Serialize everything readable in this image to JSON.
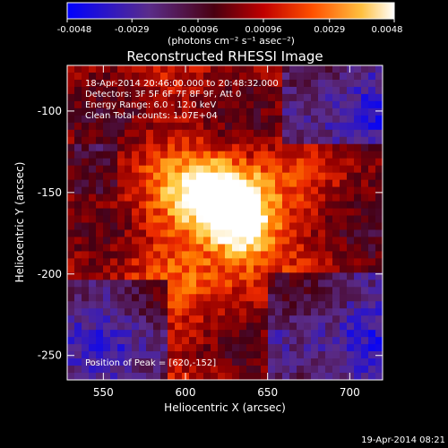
{
  "colorbar": {
    "ticks": [
      "-0.0048",
      "-0.0029",
      "-0.00096",
      "0.00096",
      "0.0029",
      "0.0048"
    ],
    "min": -0.0048,
    "max": 0.0048,
    "unit_label": "(photons cm⁻² s⁻¹ asec⁻²)"
  },
  "chart_data": {
    "type": "heatmap",
    "title": "Reconstructed RHESSI Image",
    "xlabel": "Heliocentric X (arcsec)",
    "ylabel": "Heliocentric Y (arcsec)",
    "xlim": [
      528,
      720
    ],
    "ylim": [
      -265,
      -72
    ],
    "xticks": [
      550,
      600,
      650,
      700
    ],
    "yticks": [
      -100,
      -150,
      -200,
      -250
    ],
    "peak": {
      "x": 620,
      "y": -152
    },
    "colormap": "blue-purple-red-orange-yellow-white",
    "annotations": [
      "18-Apr-2014 20:46:00.000 to 20:48:32.000",
      "Detectors: 3F 5F 6F 7F 8F 9F, Att 0",
      "Energy Range: 6.0 - 12.0 keV",
      "Clean     Total counts: 1.07E+04"
    ],
    "peak_label": "Position of Peak = [620,-152]"
  },
  "timestamp": "19-Apr-2014 08:21"
}
